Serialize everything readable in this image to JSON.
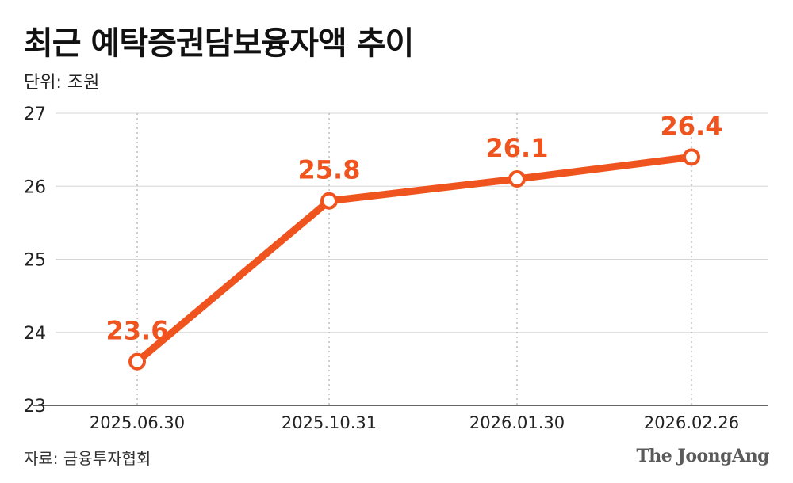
{
  "header": {
    "title": "최근 예탁증권담보융자액 추이",
    "unit": "단위: 조원"
  },
  "footer": {
    "source": "자료: 금융투자협회",
    "logo": "The JoongAng"
  },
  "colors": {
    "line": "#f0541e",
    "label": "#f0541e",
    "grid": "#d5d5d5",
    "axis": "#333333"
  },
  "chart_data": {
    "type": "line",
    "title": "최근 예탁증권담보융자액 추이",
    "xlabel": "",
    "ylabel": "",
    "categories": [
      "2025.06.30",
      "2025.10.31",
      "2026.01.30",
      "2026.02.26"
    ],
    "series": [
      {
        "values": [
          23.6,
          25.8,
          26.1,
          26.4
        ]
      }
    ],
    "data_labels": [
      "23.6",
      "25.8",
      "26.1",
      "26.4"
    ],
    "ylim": [
      23,
      27
    ],
    "yticks": [
      23,
      24,
      25,
      26,
      27
    ],
    "ytick_labels": [
      "23",
      "24",
      "25",
      "26",
      "27"
    ],
    "grid": true
  }
}
